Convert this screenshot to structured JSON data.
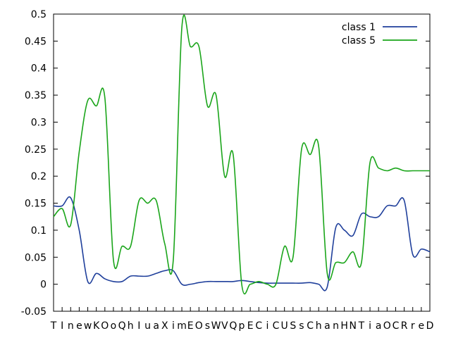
{
  "chart_data": {
    "type": "line",
    "title": "",
    "xlabel": "",
    "ylabel": "",
    "ylim": [
      -0.05,
      0.5
    ],
    "y_ticks": [
      "-0.05",
      "0",
      "0.05",
      "0.1",
      "0.15",
      "0.2",
      "0.25",
      "0.3",
      "0.35",
      "0.4",
      "0.45",
      "0.5"
    ],
    "x_tick_labels": [
      "T",
      "I",
      "n",
      "e",
      "w",
      "K",
      "O",
      "o",
      "Q",
      "h",
      "I",
      "u",
      "a",
      "X",
      "i",
      "m",
      "E",
      "O",
      "s",
      "W",
      "V",
      "Q",
      "p",
      "E",
      "C",
      "i",
      "C",
      "U",
      "S",
      "s",
      "C",
      "h",
      "a",
      "n",
      "H",
      "N",
      "T",
      "i",
      "a",
      "O",
      "C",
      "R",
      "r",
      "e",
      "D"
    ],
    "grid": false,
    "legend": "top-right",
    "series": [
      {
        "name": "class 1",
        "color": "#1f3f9b",
        "values": [
          0.145,
          0.145,
          0.16,
          0.1,
          0.005,
          0.02,
          0.01,
          0.005,
          0.005,
          0.015,
          0.015,
          0.015,
          0.02,
          0.025,
          0.025,
          0.0,
          0.0,
          0.003,
          0.005,
          0.005,
          0.005,
          0.005,
          0.007,
          0.005,
          0.003,
          0.002,
          0.002,
          0.002,
          0.002,
          0.002,
          0.003,
          0.0,
          -0.005,
          0.105,
          0.1,
          0.09,
          0.13,
          0.125,
          0.125,
          0.145,
          0.145,
          0.155,
          0.055,
          0.065,
          0.06
        ]
      },
      {
        "name": "class 5",
        "color": "#1aa51a",
        "values": [
          0.125,
          0.14,
          0.11,
          0.245,
          0.34,
          0.33,
          0.345,
          0.045,
          0.07,
          0.07,
          0.155,
          0.15,
          0.155,
          0.075,
          0.045,
          0.475,
          0.44,
          0.44,
          0.33,
          0.35,
          0.2,
          0.24,
          0.0,
          0.0,
          0.005,
          0.0,
          0.0,
          0.07,
          0.05,
          0.25,
          0.24,
          0.255,
          0.02,
          0.04,
          0.04,
          0.06,
          0.04,
          0.225,
          0.215,
          0.21,
          0.215,
          0.21,
          0.21,
          0.21,
          0.21
        ]
      }
    ]
  }
}
